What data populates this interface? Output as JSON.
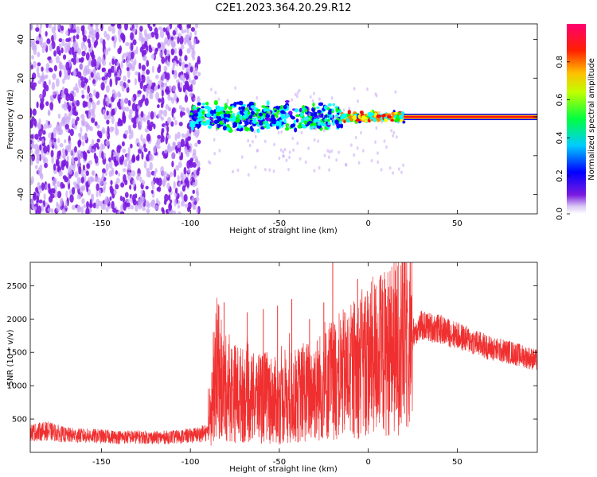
{
  "title": "C2E1.2023.364.20.29.R12",
  "colors": {
    "snr_line": "#f03030",
    "spectrogram_dots": "#7a1ae0",
    "spectrogram_light": "#c9a6f5"
  },
  "chart_data": [
    {
      "type": "heatmap",
      "name": "spectrogram",
      "xlabel": "Height of straight line (km)",
      "ylabel": "Frequency (Hz)",
      "xlim": [
        -190,
        95
      ],
      "ylim": [
        -50,
        48
      ],
      "xticks": [
        -150,
        -100,
        -50,
        0,
        50
      ],
      "yticks": [
        -40,
        -20,
        0,
        20,
        40
      ],
      "grid": false,
      "colorbar": {
        "label": "Normalized spectral amplitude",
        "range": [
          0.0,
          1.0
        ],
        "ticks": [
          "0.0",
          "0.2",
          "0.4",
          "0.6",
          "0.8"
        ],
        "colormap": [
          "#ffffff",
          "#6a00ff",
          "#0000ff",
          "#00ffff",
          "#00ff00",
          "#ffff00",
          "#ff8000",
          "#ff0000",
          "#ff0080"
        ]
      },
      "regions": [
        {
          "label": "noise",
          "x_range": [
            -190,
            -95
          ],
          "freq_range": [
            -50,
            48
          ],
          "amplitude": 0.1
        },
        {
          "label": "signal",
          "x_range": [
            -100,
            -15
          ],
          "freq_range": [
            -8,
            8
          ],
          "amplitude": 0.35
        },
        {
          "label": "signal",
          "x_range": [
            -15,
            20
          ],
          "freq_range": [
            -3,
            3
          ],
          "amplitude": 0.6
        },
        {
          "label": "tone",
          "x_range": [
            20,
            95
          ],
          "freq_range": [
            -1,
            1
          ],
          "amplitude": 0.9
        }
      ]
    },
    {
      "type": "line",
      "name": "snr",
      "xlabel": "Height of straight line (km)",
      "ylabel": "SNR (10 * v/v)",
      "xlim": [
        -190,
        95
      ],
      "ylim": [
        0,
        2850
      ],
      "xticks": [
        -150,
        -100,
        -50,
        0,
        50
      ],
      "yticks": [
        500,
        1000,
        1500,
        2000,
        2500
      ],
      "grid": false,
      "series": [
        {
          "x": [
            -190,
            -180,
            -170,
            -160,
            -150,
            -140,
            -130,
            -120,
            -110,
            -100,
            -95,
            -90,
            -87,
            -85,
            -83,
            -80,
            -75,
            -70,
            -65,
            -60,
            -55,
            -50,
            -45,
            -40,
            -35,
            -30,
            -25,
            -20,
            -15,
            -10,
            -5,
            0,
            5,
            10,
            15,
            20,
            25,
            30,
            40,
            50,
            60,
            70,
            80,
            90,
            95
          ],
          "y": [
            300,
            320,
            260,
            250,
            240,
            230,
            230,
            220,
            230,
            250,
            270,
            300,
            900,
            1300,
            1000,
            950,
            900,
            850,
            800,
            850,
            800,
            750,
            800,
            850,
            900,
            950,
            1000,
            1100,
            1150,
            1200,
            1300,
            1400,
            1450,
            1500,
            1600,
            1700,
            1800,
            1900,
            1850,
            1750,
            1650,
            1550,
            1500,
            1420,
            1380
          ]
        }
      ],
      "spikes": [
        {
          "x": -84,
          "y": 2200
        },
        {
          "x": -81,
          "y": 2250
        },
        {
          "x": -68,
          "y": 2100
        },
        {
          "x": -59,
          "y": 2150
        },
        {
          "x": -51,
          "y": 2200
        },
        {
          "x": -43,
          "y": 2300
        },
        {
          "x": -33,
          "y": 2000
        },
        {
          "x": -25,
          "y": 2250
        },
        {
          "x": -20,
          "y": 2850
        },
        {
          "x": -6,
          "y": 2600
        },
        {
          "x": 12,
          "y": 2300
        },
        {
          "x": 16,
          "y": 2100
        }
      ]
    }
  ]
}
